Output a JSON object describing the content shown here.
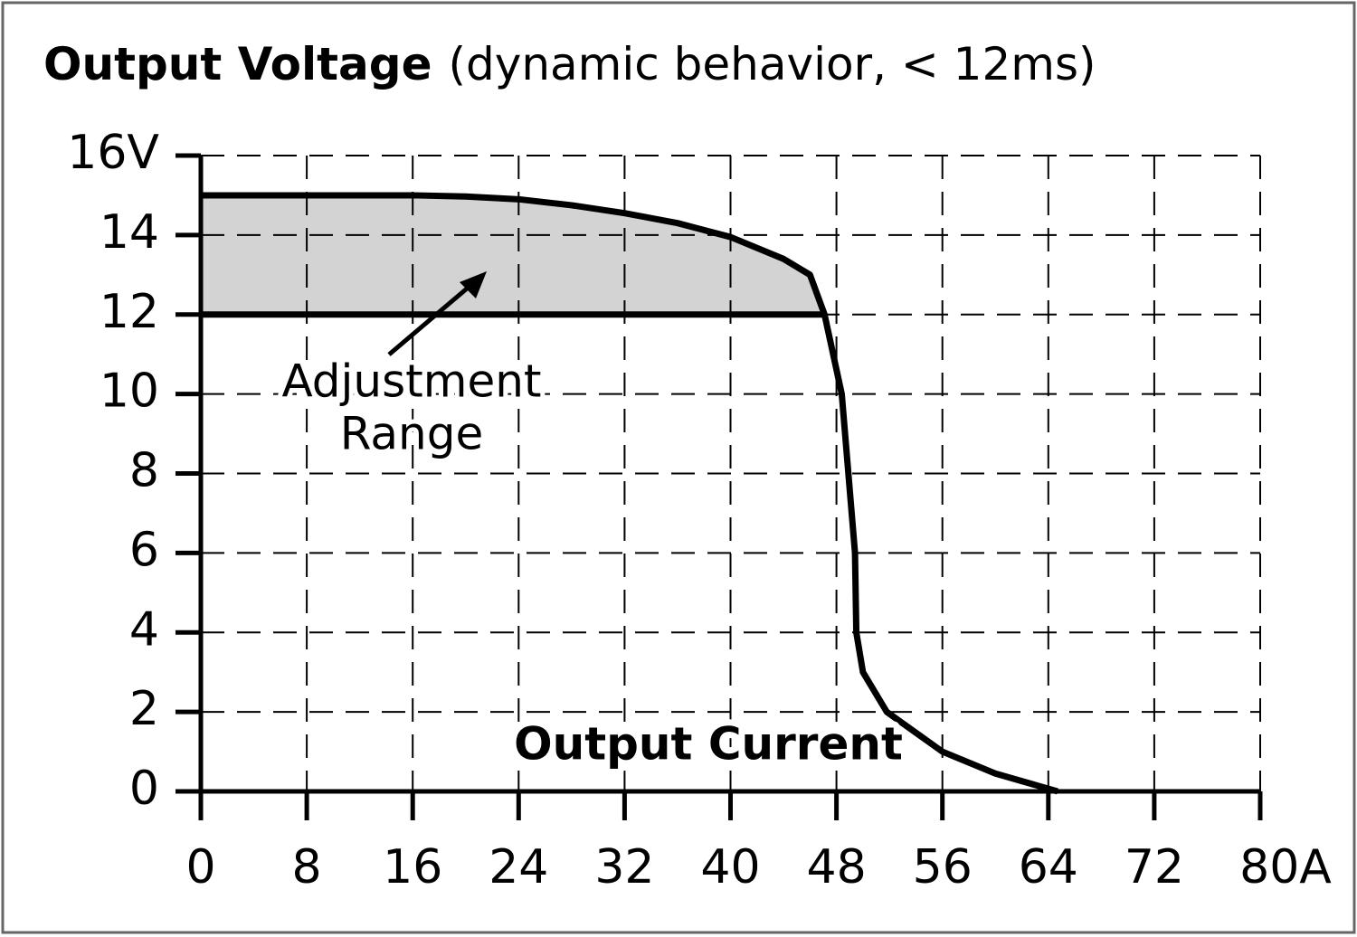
{
  "chart_data": {
    "type": "line",
    "title": "Output Voltage",
    "subtitle": "(dynamic behavior, < 12ms)",
    "x_label": "Output Current",
    "annotation": [
      "Adjustment",
      "Range"
    ],
    "xlim": [
      0,
      80
    ],
    "xticks": [
      0,
      8,
      16,
      24,
      32,
      40,
      48,
      56,
      64,
      72,
      {
        "value": 80,
        "label": "80A"
      }
    ],
    "ylim": [
      0,
      16
    ],
    "yticks": [
      0,
      2,
      4,
      6,
      8,
      10,
      12,
      14,
      {
        "value": 16,
        "label": "16V"
      }
    ],
    "grid": true,
    "fill_color": "#d3d3d3",
    "series": [
      {
        "color": "#000000",
        "x": [
          0,
          8,
          16,
          20,
          24,
          28,
          32,
          36,
          40,
          44,
          46,
          47.1,
          48.4,
          49.4,
          49.5,
          50,
          51.8,
          56,
          60,
          64.7
        ],
        "values": [
          15,
          15,
          15,
          14.97,
          14.9,
          14.75,
          14.55,
          14.3,
          13.95,
          13.4,
          13.0,
          12,
          10,
          6,
          4,
          3,
          2,
          1,
          0.45,
          0
        ]
      },
      {
        "color": "#000000",
        "x": [
          0,
          47.1
        ],
        "values": [
          12,
          12
        ]
      }
    ]
  }
}
